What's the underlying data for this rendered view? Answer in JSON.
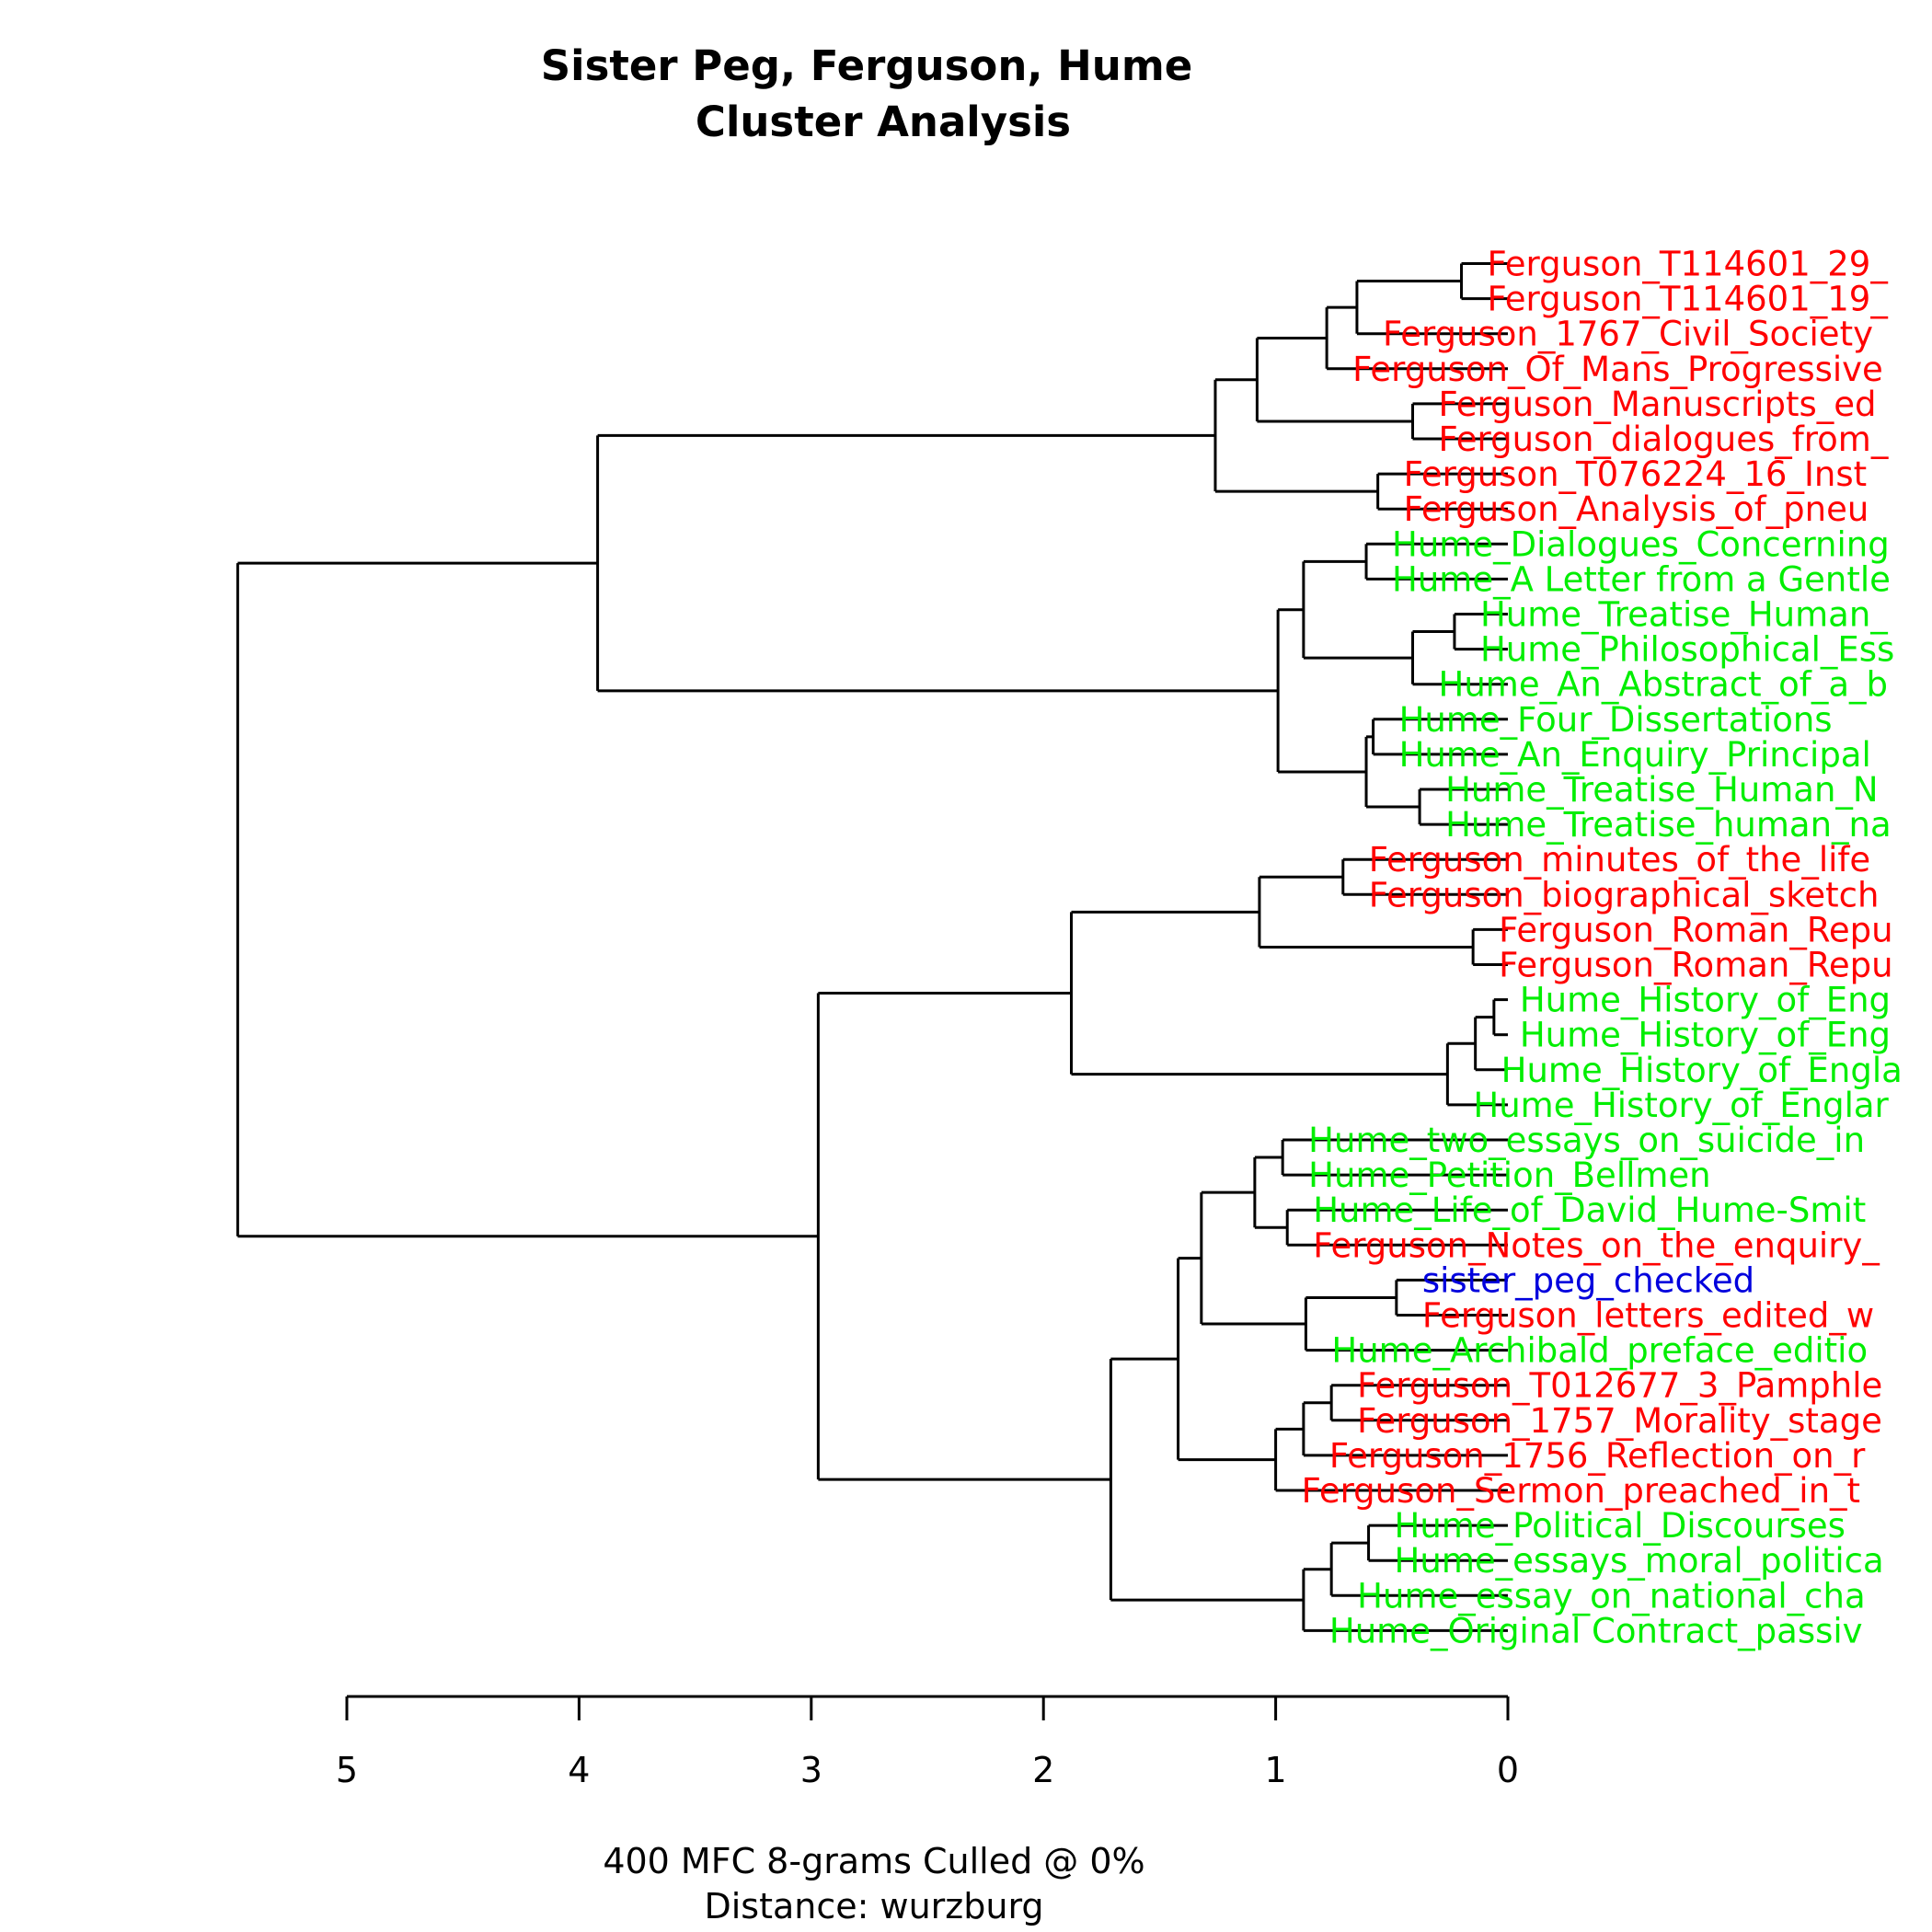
{
  "chart_data": {
    "type": "dendrogram",
    "title": [
      "Sister Peg, Ferguson, Hume",
      "Cluster Analysis"
    ],
    "xlabel": [
      "400 MFC 8-grams Culled @ 0%",
      "Distance: wurzburg"
    ],
    "xlim": [
      5,
      0
    ],
    "ticks": [
      5,
      4,
      3,
      2,
      1,
      0
    ],
    "group_colors": {
      "Ferguson": "#ff0000",
      "Hume": "#00ee00",
      "sister_peg": "#0000dd"
    },
    "leaves": [
      {
        "label": "Ferguson_T114601_29_",
        "group": "Ferguson"
      },
      {
        "label": "Ferguson_T114601_19_",
        "group": "Ferguson"
      },
      {
        "label": "Ferguson_1767_Civil_Society",
        "group": "Ferguson"
      },
      {
        "label": "Ferguson_Of_Mans_Progressive",
        "group": "Ferguson"
      },
      {
        "label": "Ferguson_Manuscripts_ed",
        "group": "Ferguson"
      },
      {
        "label": "Ferguson_dialogues_from_",
        "group": "Ferguson"
      },
      {
        "label": "Ferguson_T076224_16_Inst",
        "group": "Ferguson"
      },
      {
        "label": "Ferguson_Analysis_of_pneu",
        "group": "Ferguson"
      },
      {
        "label": "Hume_Dialogues_Concerning",
        "group": "Hume"
      },
      {
        "label": "Hume_A Letter from a Gentle",
        "group": "Hume"
      },
      {
        "label": "Hume_Treatise_Human_",
        "group": "Hume"
      },
      {
        "label": "Hume_Philosophical_Ess",
        "group": "Hume"
      },
      {
        "label": "Hume_An_Abstract_of_a_b",
        "group": "Hume"
      },
      {
        "label": "Hume_Four_Dissertations",
        "group": "Hume"
      },
      {
        "label": "Hume_An_Enquiry_Principal",
        "group": "Hume"
      },
      {
        "label": "Hume_Treatise_Human_N",
        "group": "Hume"
      },
      {
        "label": "Hume_Treatise_human_na",
        "group": "Hume"
      },
      {
        "label": "Ferguson_minutes_of_the_life",
        "group": "Ferguson"
      },
      {
        "label": "Ferguson_biographical_sketch",
        "group": "Ferguson"
      },
      {
        "label": "Ferguson_Roman_Repu",
        "group": "Ferguson"
      },
      {
        "label": "Ferguson_Roman_Repu",
        "group": "Ferguson"
      },
      {
        "label": "Hume_History_of_Eng",
        "group": "Hume"
      },
      {
        "label": "Hume_History_of_Eng",
        "group": "Hume"
      },
      {
        "label": "Hume_History_of_Engla",
        "group": "Hume"
      },
      {
        "label": "Hume_History_of_Englar",
        "group": "Hume"
      },
      {
        "label": "Hume_two_essays_on_suicide_in",
        "group": "Hume"
      },
      {
        "label": "Hume_Petition_Bellmen",
        "group": "Hume"
      },
      {
        "label": "Hume_Life_of_David_Hume-Smit",
        "group": "Hume"
      },
      {
        "label": "Ferguson_Notes_on_the_enquiry_",
        "group": "Ferguson"
      },
      {
        "label": "sister_peg_checked",
        "group": "sister_peg"
      },
      {
        "label": "Ferguson_letters_edited_w",
        "group": "Ferguson"
      },
      {
        "label": "Hume_Archibald_preface_editio",
        "group": "Hume"
      },
      {
        "label": "Ferguson_T012677_3_Pamphle",
        "group": "Ferguson"
      },
      {
        "label": "Ferguson_1757_Morality_stage",
        "group": "Ferguson"
      },
      {
        "label": "Ferguson_1756_Reflection_on_r",
        "group": "Ferguson"
      },
      {
        "label": "Ferguson_Sermon_preached_in_t",
        "group": "Ferguson"
      },
      {
        "label": "Hume_Political_Discourses",
        "group": "Hume"
      },
      {
        "label": "Hume_essays_moral_politica",
        "group": "Hume"
      },
      {
        "label": "Hume_essay_on_national_cha",
        "group": "Hume"
      },
      {
        "label": "Hume_Original Contract_passiv",
        "group": "Hume"
      }
    ],
    "merges": [
      {
        "a": [
          "leaf",
          0
        ],
        "b": [
          "leaf",
          1
        ],
        "h": 0.2
      },
      {
        "a": [
          "node",
          0
        ],
        "b": [
          "leaf",
          2
        ],
        "h": 0.65
      },
      {
        "a": [
          "node",
          1
        ],
        "b": [
          "leaf",
          3
        ],
        "h": 0.78
      },
      {
        "a": [
          "leaf",
          4
        ],
        "b": [
          "leaf",
          5
        ],
        "h": 0.41
      },
      {
        "a": [
          "node",
          2
        ],
        "b": [
          "node",
          3
        ],
        "h": 1.08
      },
      {
        "a": [
          "leaf",
          6
        ],
        "b": [
          "leaf",
          7
        ],
        "h": 0.56
      },
      {
        "a": [
          "node",
          4
        ],
        "b": [
          "node",
          5
        ],
        "h": 1.26
      },
      {
        "a": [
          "leaf",
          8
        ],
        "b": [
          "leaf",
          9
        ],
        "h": 0.61
      },
      {
        "a": [
          "leaf",
          10
        ],
        "b": [
          "leaf",
          11
        ],
        "h": 0.23
      },
      {
        "a": [
          "node",
          8
        ],
        "b": [
          "leaf",
          12
        ],
        "h": 0.41
      },
      {
        "a": [
          "node",
          7
        ],
        "b": [
          "node",
          9
        ],
        "h": 0.88
      },
      {
        "a": [
          "leaf",
          13
        ],
        "b": [
          "leaf",
          14
        ],
        "h": 0.58
      },
      {
        "a": [
          "leaf",
          15
        ],
        "b": [
          "leaf",
          16
        ],
        "h": 0.38
      },
      {
        "a": [
          "node",
          11
        ],
        "b": [
          "node",
          12
        ],
        "h": 0.61
      },
      {
        "a": [
          "node",
          10
        ],
        "b": [
          "node",
          13
        ],
        "h": 0.99
      },
      {
        "a": [
          "node",
          6
        ],
        "b": [
          "node",
          14
        ],
        "h": 3.92
      },
      {
        "a": [
          "leaf",
          17
        ],
        "b": [
          "leaf",
          18
        ],
        "h": 0.71
      },
      {
        "a": [
          "leaf",
          19
        ],
        "b": [
          "leaf",
          20
        ],
        "h": 0.15
      },
      {
        "a": [
          "node",
          16
        ],
        "b": [
          "node",
          17
        ],
        "h": 1.07
      },
      {
        "a": [
          "leaf",
          21
        ],
        "b": [
          "leaf",
          22
        ],
        "h": 0.06
      },
      {
        "a": [
          "node",
          19
        ],
        "b": [
          "leaf",
          23
        ],
        "h": 0.14
      },
      {
        "a": [
          "node",
          20
        ],
        "b": [
          "leaf",
          24
        ],
        "h": 0.26
      },
      {
        "a": [
          "node",
          18
        ],
        "b": [
          "node",
          21
        ],
        "h": 1.88
      },
      {
        "a": [
          "leaf",
          25
        ],
        "b": [
          "leaf",
          26
        ],
        "h": 0.97
      },
      {
        "a": [
          "leaf",
          27
        ],
        "b": [
          "leaf",
          28
        ],
        "h": 0.95
      },
      {
        "a": [
          "node",
          23
        ],
        "b": [
          "node",
          24
        ],
        "h": 1.09
      },
      {
        "a": [
          "leaf",
          29
        ],
        "b": [
          "leaf",
          30
        ],
        "h": 0.48
      },
      {
        "a": [
          "node",
          26
        ],
        "b": [
          "leaf",
          31
        ],
        "h": 0.87
      },
      {
        "a": [
          "node",
          25
        ],
        "b": [
          "node",
          27
        ],
        "h": 1.32
      },
      {
        "a": [
          "leaf",
          32
        ],
        "b": [
          "leaf",
          33
        ],
        "h": 0.76
      },
      {
        "a": [
          "node",
          29
        ],
        "b": [
          "leaf",
          34
        ],
        "h": 0.88
      },
      {
        "a": [
          "node",
          30
        ],
        "b": [
          "leaf",
          35
        ],
        "h": 1.0
      },
      {
        "a": [
          "node",
          28
        ],
        "b": [
          "node",
          31
        ],
        "h": 1.42
      },
      {
        "a": [
          "leaf",
          36
        ],
        "b": [
          "leaf",
          37
        ],
        "h": 0.6
      },
      {
        "a": [
          "node",
          33
        ],
        "b": [
          "leaf",
          38
        ],
        "h": 0.76
      },
      {
        "a": [
          "node",
          34
        ],
        "b": [
          "leaf",
          39
        ],
        "h": 0.88
      },
      {
        "a": [
          "node",
          32
        ],
        "b": [
          "node",
          35
        ],
        "h": 1.71
      },
      {
        "a": [
          "node",
          22
        ],
        "b": [
          "node",
          36
        ],
        "h": 2.97
      },
      {
        "a": [
          "node",
          15
        ],
        "b": [
          "node",
          37
        ],
        "h": 5.47
      }
    ]
  }
}
